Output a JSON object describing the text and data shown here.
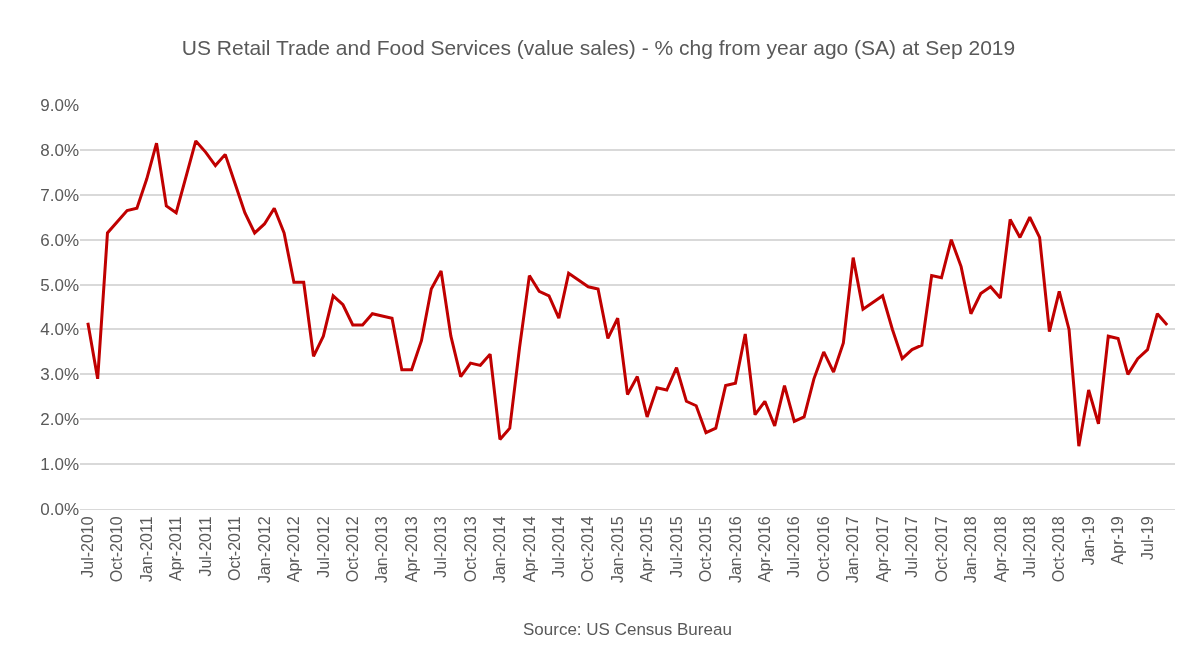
{
  "chart_data": {
    "type": "line",
    "title": "US Retail Trade and Food Services (value sales) - % chg from year ago (SA) at Sep 2019",
    "categories": [
      "Jul-2010",
      null,
      null,
      "Oct-2010",
      null,
      null,
      "Jan-2011",
      null,
      null,
      "Apr-2011",
      null,
      null,
      "Jul-2011",
      null,
      null,
      "Oct-2011",
      null,
      null,
      "Jan-2012",
      null,
      null,
      "Apr-2012",
      null,
      null,
      "Jul-2012",
      null,
      null,
      "Oct-2012",
      null,
      null,
      "Jan-2013",
      null,
      null,
      "Apr-2013",
      null,
      null,
      "Jul-2013",
      null,
      null,
      "Oct-2013",
      null,
      null,
      "Jan-2014",
      null,
      null,
      "Apr-2014",
      null,
      null,
      "Jul-2014",
      null,
      null,
      "Oct-2014",
      null,
      null,
      "Jan-2015",
      null,
      null,
      "Apr-2015",
      null,
      null,
      "Jul-2015",
      null,
      null,
      "Oct-2015",
      null,
      null,
      "Jan-2016",
      null,
      null,
      "Apr-2016",
      null,
      null,
      "Jul-2016",
      null,
      null,
      "Oct-2016",
      null,
      null,
      "Jan-2017",
      null,
      null,
      "Apr-2017",
      null,
      null,
      "Jul-2017",
      null,
      null,
      "Oct-2017",
      null,
      null,
      "Jan-2018",
      null,
      null,
      "Apr-2018",
      null,
      null,
      "Jul-2018",
      null,
      null,
      "Oct-2018",
      null,
      null,
      "Jan-19",
      null,
      null,
      "Apr-19",
      null,
      null,
      "Jul-19",
      null,
      null
    ],
    "series": [
      {
        "color": "#c00000",
        "values": [
          4.15,
          2.9,
          6.15,
          6.4,
          6.65,
          6.7,
          7.35,
          8.15,
          6.75,
          6.6,
          7.4,
          8.2,
          7.95,
          7.65,
          7.9,
          7.25,
          6.6,
          6.15,
          6.35,
          6.7,
          6.15,
          5.05,
          5.05,
          3.4,
          3.85,
          4.75,
          4.55,
          4.1,
          4.1,
          4.35,
          4.3,
          4.25,
          3.1,
          3.1,
          3.75,
          4.9,
          5.3,
          3.85,
          2.95,
          3.25,
          3.2,
          3.45,
          1.55,
          1.8,
          3.6,
          5.2,
          4.85,
          4.75,
          4.25,
          5.25,
          5.1,
          4.95,
          4.9,
          3.8,
          4.25,
          2.55,
          2.95,
          2.05,
          2.7,
          2.65,
          3.15,
          2.4,
          2.3,
          1.7,
          1.8,
          2.75,
          2.8,
          3.9,
          2.1,
          2.4,
          1.85,
          2.75,
          1.95,
          2.05,
          2.9,
          3.5,
          3.05,
          3.7,
          5.6,
          4.45,
          4.6,
          4.75,
          4.0,
          3.35,
          3.55,
          3.65,
          5.2,
          5.15,
          6.0,
          5.4,
          4.35,
          4.8,
          4.95,
          4.7,
          6.45,
          6.05,
          6.5,
          6.05,
          3.95,
          4.85,
          4.0,
          1.4,
          2.65,
          1.9,
          3.85,
          3.8,
          3.0,
          3.35,
          3.55,
          4.35,
          4.1
        ]
      }
    ],
    "ylim": [
      0,
      9
    ],
    "yticks": [
      {
        "value": 0,
        "label": "0.0%"
      },
      {
        "value": 1,
        "label": "1.0%"
      },
      {
        "value": 2,
        "label": "2.0%"
      },
      {
        "value": 3,
        "label": "3.0%"
      },
      {
        "value": 4,
        "label": "4.0%"
      },
      {
        "value": 5,
        "label": "5.0%"
      },
      {
        "value": 6,
        "label": "6.0%"
      },
      {
        "value": 7,
        "label": "7.0%"
      },
      {
        "value": 8,
        "label": "8.0%"
      },
      {
        "value": 9,
        "label": "9.0%"
      }
    ],
    "grid": "y",
    "annotations": [
      "Source: US Census Bureau"
    ]
  }
}
